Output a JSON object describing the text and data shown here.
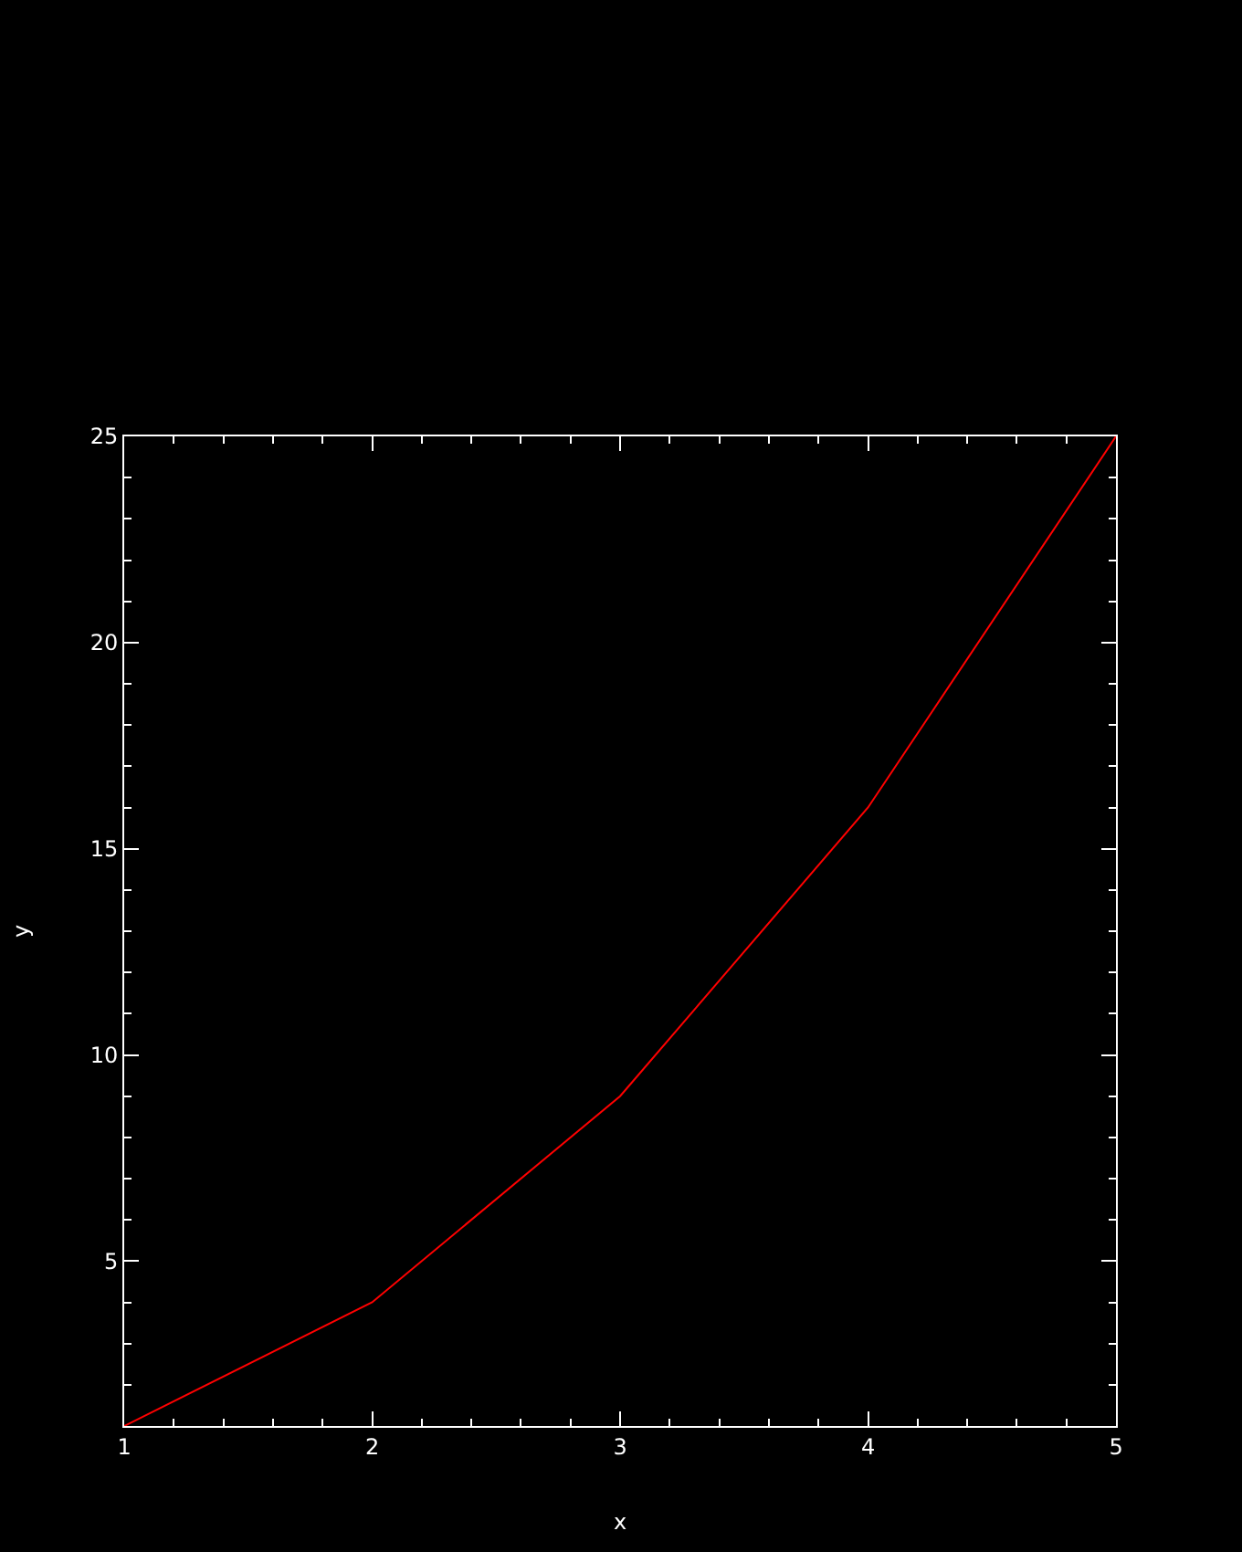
{
  "chart_data": {
    "type": "line",
    "xlabel": "x",
    "ylabel": "y",
    "x": [
      1,
      2,
      3,
      4,
      5
    ],
    "series": [
      {
        "color": "#ff0000",
        "values": [
          1,
          4,
          9,
          16,
          25
        ]
      }
    ],
    "xlim": [
      1,
      5
    ],
    "ylim": [
      1,
      25
    ],
    "xticks": [
      1,
      {
        "value": 1.2,
        "label": null
      },
      {
        "value": 1.4,
        "label": null
      },
      {
        "value": 1.6,
        "label": null
      },
      {
        "value": 1.8,
        "label": null
      },
      2,
      {
        "value": 2.2,
        "label": null
      },
      {
        "value": 2.4,
        "label": null
      },
      {
        "value": 2.6,
        "label": null
      },
      {
        "value": 2.8,
        "label": null
      },
      3,
      {
        "value": 3.2,
        "label": null
      },
      {
        "value": 3.4,
        "label": null
      },
      {
        "value": 3.6,
        "label": null
      },
      {
        "value": 3.8,
        "label": null
      },
      4,
      {
        "value": 4.2,
        "label": null
      },
      {
        "value": 4.4,
        "label": null
      },
      {
        "value": 4.6,
        "label": null
      },
      {
        "value": 4.8,
        "label": null
      },
      5
    ],
    "yticks": [
      {
        "value": 2,
        "label": null
      },
      {
        "value": 3,
        "label": null
      },
      {
        "value": 4,
        "label": null
      },
      5,
      {
        "value": 6,
        "label": null
      },
      {
        "value": 7,
        "label": null
      },
      {
        "value": 8,
        "label": null
      },
      {
        "value": 9,
        "label": null
      },
      10,
      {
        "value": 11,
        "label": null
      },
      {
        "value": 12,
        "label": null
      },
      {
        "value": 13,
        "label": null
      },
      {
        "value": 14,
        "label": null
      },
      15,
      {
        "value": 16,
        "label": null
      },
      {
        "value": 17,
        "label": null
      },
      {
        "value": 18,
        "label": null
      },
      {
        "value": 19,
        "label": null
      },
      20,
      {
        "value": 21,
        "label": null
      },
      {
        "value": 22,
        "label": null
      },
      {
        "value": 23,
        "label": null
      },
      {
        "value": 24,
        "label": null
      },
      25
    ],
    "grid": false,
    "legend": false,
    "marker": "none",
    "line_style": "solid"
  }
}
